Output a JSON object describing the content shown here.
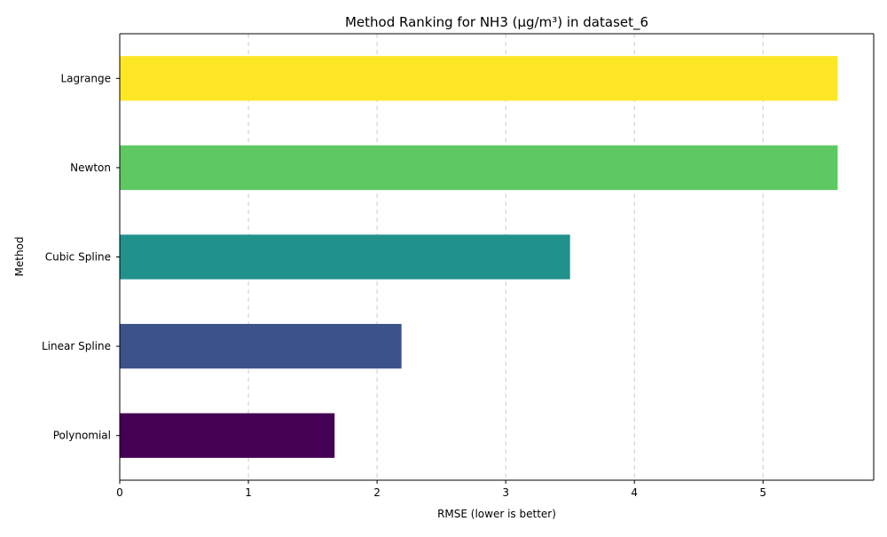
{
  "chart_data": {
    "type": "bar",
    "orientation": "horizontal",
    "title": "Method Ranking for NH3 (µg/m³) in dataset_6",
    "xlabel": "RMSE (lower is better)",
    "ylabel": "Method",
    "categories": [
      "Polynomial",
      "Linear Spline",
      "Cubic Spline",
      "Newton",
      "Lagrange"
    ],
    "values": [
      1.67,
      2.19,
      3.5,
      5.58,
      5.58
    ],
    "colors": [
      "#440154",
      "#3b528b",
      "#21918c",
      "#5ec962",
      "#fde725"
    ],
    "xlim": [
      0,
      5.86
    ],
    "xticks": [
      0,
      1,
      2,
      3,
      4,
      5
    ],
    "grid": "x-axis, dashed",
    "legend": "none"
  }
}
